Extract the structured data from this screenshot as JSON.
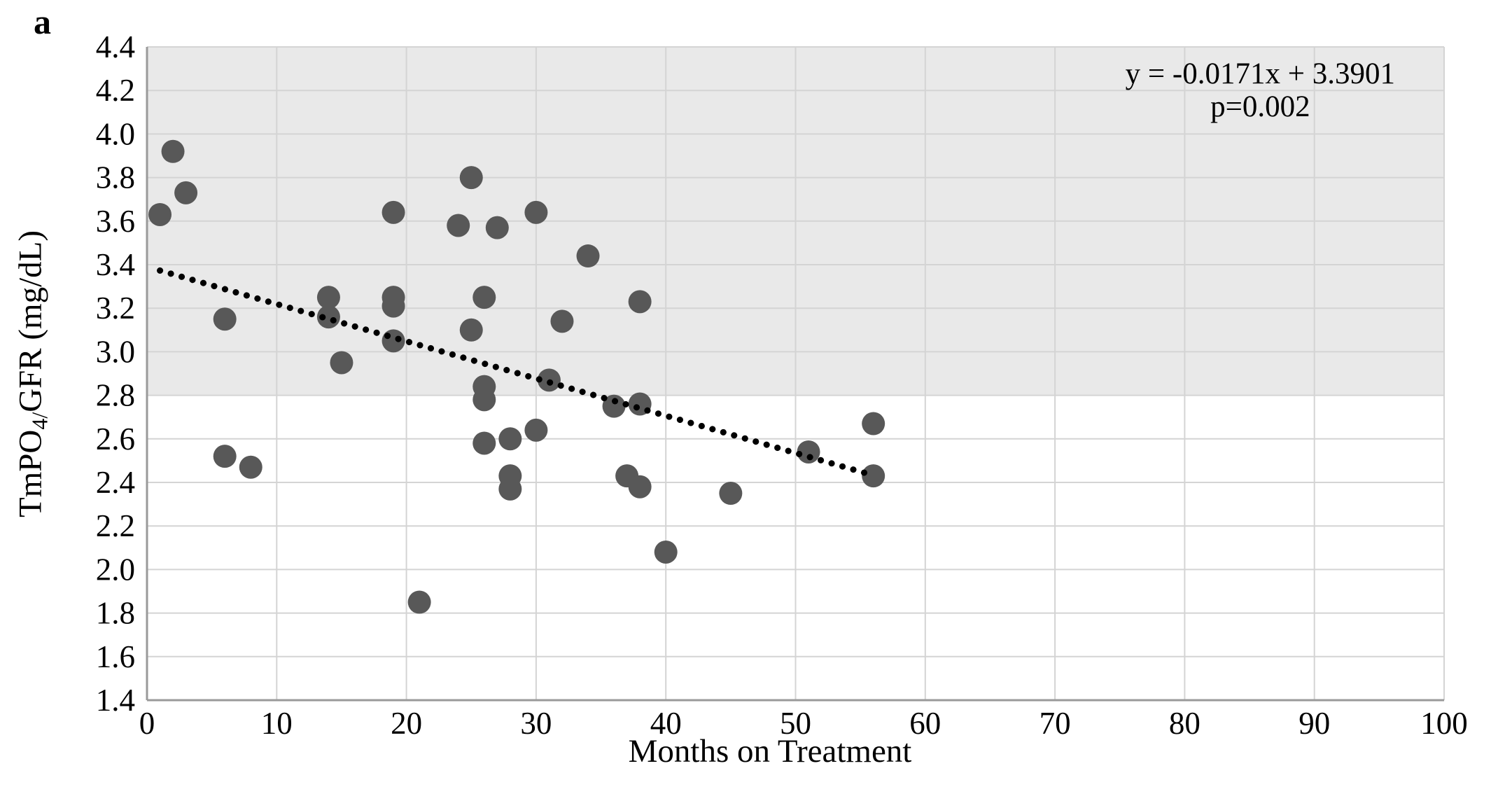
{
  "figure": {
    "panel_label": "a"
  },
  "chart_data": {
    "type": "scatter",
    "title": "",
    "xlabel": "Months on Treatment",
    "ylabel": "TmPO4/GFR (mg/dL)",
    "ylabel_parts": {
      "prefix": "TmPO",
      "subscript": "4/",
      "suffix": "GFR (mg/dL)"
    },
    "xlim": [
      0,
      100
    ],
    "ylim": [
      1.4,
      4.4
    ],
    "xticks": [
      0,
      10,
      20,
      30,
      40,
      50,
      60,
      70,
      80,
      90,
      100
    ],
    "yticks": [
      1.4,
      1.6,
      1.8,
      2.0,
      2.2,
      2.4,
      2.6,
      2.8,
      3.0,
      3.2,
      3.4,
      3.6,
      3.8,
      4.0,
      4.2,
      4.4
    ],
    "grid": true,
    "legend": "none",
    "points": [
      [
        1,
        3.63
      ],
      [
        2,
        3.92
      ],
      [
        3,
        3.73
      ],
      [
        6,
        3.15
      ],
      [
        6,
        2.52
      ],
      [
        8,
        2.47
      ],
      [
        14,
        3.25
      ],
      [
        14,
        3.16
      ],
      [
        15,
        2.95
      ],
      [
        19,
        3.64
      ],
      [
        19,
        3.25
      ],
      [
        19,
        3.21
      ],
      [
        19,
        3.05
      ],
      [
        21,
        1.85
      ],
      [
        24,
        3.58
      ],
      [
        25,
        3.8
      ],
      [
        25,
        3.1
      ],
      [
        26,
        3.25
      ],
      [
        26,
        2.84
      ],
      [
        26,
        2.78
      ],
      [
        26,
        2.58
      ],
      [
        27,
        3.57
      ],
      [
        28,
        2.6
      ],
      [
        28,
        2.43
      ],
      [
        28,
        2.37
      ],
      [
        30,
        3.64
      ],
      [
        30,
        2.64
      ],
      [
        31,
        2.87
      ],
      [
        32,
        3.14
      ],
      [
        34,
        3.44
      ],
      [
        36,
        2.75
      ],
      [
        37,
        2.43
      ],
      [
        38,
        3.23
      ],
      [
        38,
        2.76
      ],
      [
        38,
        2.38
      ],
      [
        40,
        2.08
      ],
      [
        45,
        2.35
      ],
      [
        51,
        2.54
      ],
      [
        56,
        2.67
      ],
      [
        56,
        2.43
      ]
    ],
    "trendline": {
      "equation": "y = -0.0171x + 3.3901",
      "slope": -0.0171,
      "intercept": 3.3901,
      "x_start": 1,
      "x_end": 55.5,
      "style": "dotted"
    },
    "annotation": {
      "line1": "y = -0.0171x + 3.3901",
      "line2": "p=0.002"
    },
    "shaded_band": {
      "y_from": 2.8,
      "y_to": 4.4
    },
    "colors": {
      "band": "#e9e9e9",
      "gridline": "#d4d4d4",
      "axis": "#9a9a9a",
      "point": "#585858",
      "trend": "#000000"
    }
  }
}
